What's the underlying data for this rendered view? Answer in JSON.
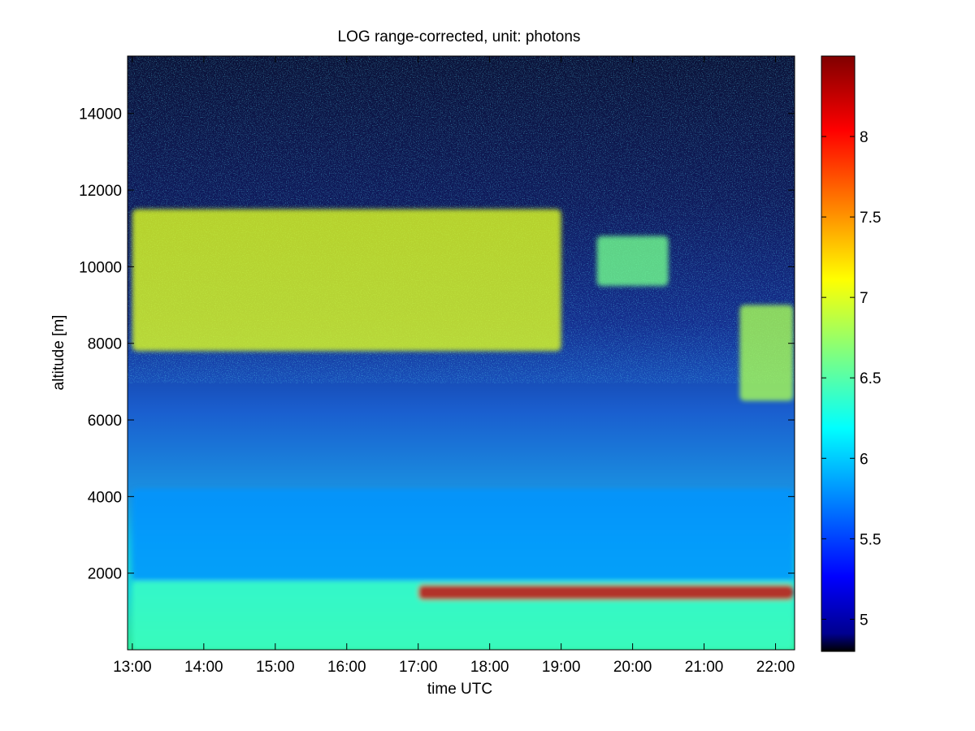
{
  "chart_data": {
    "type": "heatmap",
    "title": "LOG range-corrected, unit: photons",
    "xlabel": "time UTC",
    "ylabel": "altitude [m]",
    "x_ticks": [
      "13:00",
      "14:00",
      "15:00",
      "16:00",
      "17:00",
      "18:00",
      "19:00",
      "20:00",
      "21:00",
      "22:00"
    ],
    "y_ticks": [
      2000,
      4000,
      6000,
      8000,
      10000,
      12000,
      14000
    ],
    "xlim": [
      "12:56",
      "22:16"
    ],
    "ylim": [
      0,
      15500
    ],
    "colorbar": {
      "ticks": [
        5,
        5.5,
        6,
        6.5,
        7,
        7.5,
        8
      ],
      "range": [
        4.8,
        8.5
      ],
      "colormap": "jet"
    },
    "features": [
      {
        "name": "boundary layer",
        "time": [
          "13:00",
          "22:15"
        ],
        "altitude": [
          0,
          1800
        ],
        "value": 6.4
      },
      {
        "name": "aerosol layer",
        "time": [
          "13:00",
          "22:15"
        ],
        "altitude": [
          1800,
          4200
        ],
        "value": 5.8
      },
      {
        "name": "cirrus",
        "time": [
          "13:00",
          "19:00"
        ],
        "altitude": [
          7800,
          11500
        ],
        "value": 7.0
      },
      {
        "name": "cirrus",
        "time": [
          "19:30",
          "20:30"
        ],
        "altitude": [
          9500,
          10800
        ],
        "value": 6.6
      },
      {
        "name": "cirrus",
        "time": [
          "21:30",
          "22:15"
        ],
        "altitude": [
          6500,
          9000
        ],
        "value": 6.8
      },
      {
        "name": "cloud base",
        "time": [
          "17:00",
          "22:15"
        ],
        "altitude": [
          1300,
          1700
        ],
        "value": 8.2
      }
    ]
  }
}
